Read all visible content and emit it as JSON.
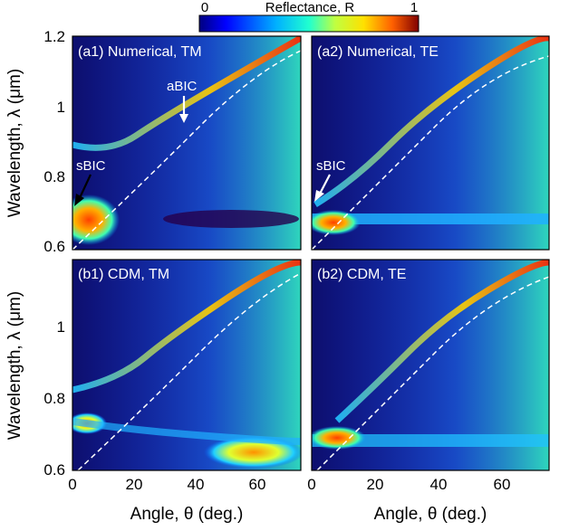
{
  "colorbar": {
    "label": "Reflectance, R",
    "min_label": "0",
    "max_label": "1",
    "colormap": [
      "#000080",
      "#0000ff",
      "#00b0ff",
      "#20ffd0",
      "#c0ff40",
      "#ffe000",
      "#ff6000",
      "#c00000",
      "#800000"
    ]
  },
  "axes": {
    "x_label": "Angle, θ (deg.)",
    "y_label": "Wavelength, λ (μm)",
    "x_ticks": [
      "0",
      "20",
      "40",
      "60"
    ],
    "y_ticks_top": [
      "0.6",
      "0.8",
      "1",
      "1.2"
    ],
    "y_ticks_bottom": [
      "0.6",
      "0.8",
      "1"
    ]
  },
  "annotations": {
    "sbic_a1": "sBIC",
    "abic_a1": "aBIC",
    "sbic_a2": "sBIC"
  },
  "chart_data": [
    {
      "type": "heatmap",
      "panel": "(a1) Numerical, TM",
      "xlim": [
        0,
        75
      ],
      "ylim": [
        0.58,
        1.2
      ],
      "light_line": {
        "style": "dashed",
        "x": [
          0,
          10,
          20,
          30,
          40,
          50,
          60,
          70,
          75
        ],
        "y": [
          0.595,
          0.66,
          0.75,
          0.85,
          0.95,
          1.03,
          1.09,
          1.13,
          1.145
        ]
      },
      "bands": [
        {
          "name": "guided resonance",
          "x": [
            0,
            10,
            20,
            30,
            40,
            50,
            60,
            70,
            75
          ],
          "y": [
            0.82,
            0.86,
            0.92,
            0.97,
            1.03,
            1.09,
            1.13,
            1.17,
            1.19
          ]
        },
        {
          "name": "low-reflectance band",
          "x": [
            20,
            40,
            60,
            75
          ],
          "y": [
            0.67,
            0.665,
            0.67,
            0.68
          ]
        }
      ],
      "high_reflectance_region": {
        "x": [
          0,
          12
        ],
        "y": [
          0.62,
          0.73
        ],
        "value": 0.9
      }
    },
    {
      "type": "heatmap",
      "panel": "(a2) Numerical, TE",
      "xlim": [
        0,
        75
      ],
      "ylim": [
        0.58,
        1.2
      ],
      "light_line": {
        "style": "dashed",
        "x": [
          0,
          10,
          20,
          30,
          40,
          50,
          60,
          70,
          75
        ],
        "y": [
          0.595,
          0.66,
          0.75,
          0.85,
          0.95,
          1.03,
          1.09,
          1.13,
          1.145
        ]
      },
      "bands": [
        {
          "name": "guided resonance",
          "x": [
            2,
            10,
            20,
            30,
            40,
            50,
            60,
            70,
            75
          ],
          "y": [
            0.71,
            0.77,
            0.84,
            0.92,
            1.0,
            1.07,
            1.12,
            1.16,
            1.18
          ]
        },
        {
          "name": "horizontal band",
          "x": [
            0,
            25,
            50,
            75
          ],
          "y": [
            0.685,
            0.685,
            0.685,
            0.685
          ]
        }
      ],
      "high_reflectance_region": {
        "x": [
          0,
          10
        ],
        "y": [
          0.66,
          0.7
        ],
        "value": 0.9
      }
    },
    {
      "type": "heatmap",
      "panel": "(b1) CDM, TM",
      "xlim": [
        0,
        75
      ],
      "ylim": [
        0.6,
        1.2
      ],
      "light_line": {
        "style": "dashed",
        "x": [
          0,
          10,
          20,
          30,
          40,
          50,
          60,
          70,
          75
        ],
        "y": [
          0.6,
          0.67,
          0.755,
          0.85,
          0.95,
          1.03,
          1.09,
          1.13,
          1.145
        ]
      },
      "bands": [
        {
          "name": "guided resonance",
          "x": [
            0,
            10,
            20,
            30,
            40,
            50,
            60,
            70,
            75
          ],
          "y": [
            0.79,
            0.83,
            0.89,
            0.96,
            1.02,
            1.08,
            1.12,
            1.16,
            1.18
          ]
        },
        {
          "name": "lower band",
          "x": [
            0,
            10,
            20,
            40,
            60,
            75
          ],
          "y": [
            0.735,
            0.72,
            0.7,
            0.69,
            0.68,
            0.67
          ]
        }
      ],
      "high_reflectance_region": {
        "x": [
          40,
          75
        ],
        "y": [
          0.63,
          0.69
        ],
        "value": 0.7
      }
    },
    {
      "type": "heatmap",
      "panel": "(b2) CDM, TE",
      "xlim": [
        0,
        75
      ],
      "ylim": [
        0.6,
        1.2
      ],
      "light_line": {
        "style": "dashed",
        "x": [
          0,
          10,
          20,
          30,
          40,
          50,
          60,
          70,
          75
        ],
        "y": [
          0.6,
          0.67,
          0.755,
          0.85,
          0.95,
          1.03,
          1.09,
          1.13,
          1.145
        ]
      },
      "bands": [
        {
          "name": "guided resonance",
          "x": [
            10,
            20,
            30,
            40,
            50,
            60,
            70,
            75
          ],
          "y": [
            0.73,
            0.82,
            0.9,
            0.98,
            1.05,
            1.1,
            1.15,
            1.17
          ]
        },
        {
          "name": "horizontal band",
          "x": [
            0,
            25,
            50,
            75
          ],
          "y": [
            0.68,
            0.68,
            0.68,
            0.68
          ]
        }
      ],
      "high_reflectance_region": {
        "x": [
          0,
          15
        ],
        "y": [
          0.66,
          0.71
        ],
        "value": 0.9
      }
    }
  ]
}
